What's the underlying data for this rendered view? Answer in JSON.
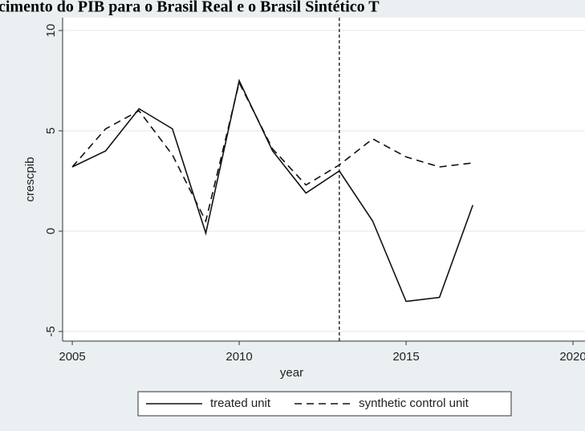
{
  "chart_data": {
    "type": "line",
    "title": "cimento do PIB para o Brasil Real e o Brasil Sintético T",
    "x_label": "year",
    "y_label": "crescpib",
    "x": [
      2005,
      2006,
      2007,
      2008,
      2009,
      2010,
      2011,
      2012,
      2013,
      2014,
      2015,
      2016,
      2017
    ],
    "series": [
      {
        "name": "treated unit",
        "color": "#111111",
        "dash": "solid",
        "values": [
          3.2,
          4.0,
          6.1,
          5.1,
          -0.1,
          7.5,
          4.0,
          1.9,
          3.0,
          0.5,
          -3.5,
          -3.3,
          1.3
        ]
      },
      {
        "name": "synthetic control unit",
        "color": "#111111",
        "dash": "dashed",
        "values": [
          3.2,
          5.1,
          6.0,
          3.8,
          0.5,
          7.4,
          4.1,
          2.3,
          3.3,
          4.6,
          3.7,
          3.2,
          3.4
        ]
      }
    ],
    "xline": 2013,
    "xlim": [
      2004.71,
      2020.36
    ],
    "ylim": [
      -5.48,
      10.64
    ],
    "xticks": [
      2005,
      2010,
      2015,
      2020
    ],
    "yticks": [
      -5,
      0,
      5,
      10
    ],
    "grid": true,
    "legend": "bottom"
  }
}
